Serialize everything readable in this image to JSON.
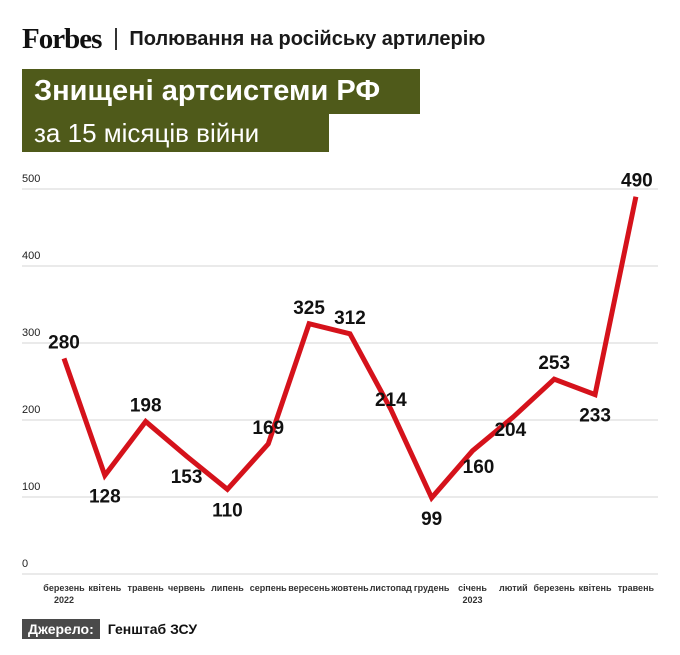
{
  "header": {
    "logo": "Forbes",
    "subtitle": "Полювання на російську артилерію"
  },
  "title": {
    "line1": "Знищені артсистеми РФ",
    "line2": "за 15 місяців війни"
  },
  "source": {
    "label": "Джерело:",
    "text": "Генштаб ЗСУ"
  },
  "colors": {
    "line": "#d5121b",
    "title_bg": "#4f5a1a",
    "grid": "#d6d6d6"
  },
  "chart_data": {
    "type": "line",
    "categories": [
      [
        "березень",
        "2022"
      ],
      [
        "квітень"
      ],
      [
        "травень"
      ],
      [
        "червень"
      ],
      [
        "липень"
      ],
      [
        "серпень"
      ],
      [
        "вересень"
      ],
      [
        "жовтень"
      ],
      [
        "листопад"
      ],
      [
        "грудень"
      ],
      [
        "січень",
        "2023"
      ],
      [
        "лютий"
      ],
      [
        "березень"
      ],
      [
        "квітень"
      ],
      [
        "травень"
      ]
    ],
    "values": [
      280,
      128,
      198,
      153,
      110,
      169,
      325,
      312,
      214,
      99,
      160,
      204,
      253,
      233,
      490
    ],
    "data_labels": [
      "280",
      "128",
      "198",
      "153",
      "110",
      "169",
      "325",
      "312",
      "214",
      "99",
      "160",
      "204",
      "253",
      "233",
      "490"
    ],
    "yticks": [
      0,
      100,
      200,
      300,
      400,
      500
    ],
    "ylim": [
      0,
      500
    ],
    "grid": true
  }
}
